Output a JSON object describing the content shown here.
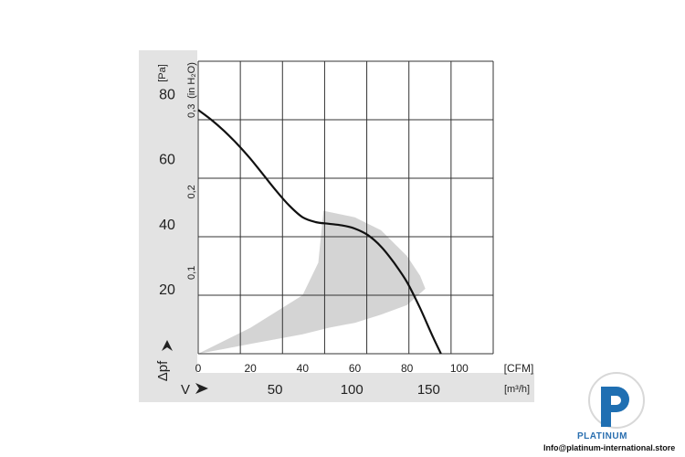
{
  "chart_data": {
    "type": "line",
    "title": "",
    "ylabel": "Δpf",
    "xlabel": "V",
    "y_unit_primary": "[Pa]",
    "y_unit_secondary": "(in H₂O)",
    "x_unit_primary": "[CFM]",
    "x_unit_secondary": "[m³/h]",
    "ylim": [
      0,
      90
    ],
    "xlim": [
      0,
      113
    ],
    "y_ticks": [
      "20",
      "40",
      "60",
      "80"
    ],
    "y_ticks_secondary": [
      "0,1",
      "0,2",
      "0,3"
    ],
    "x_ticks": [
      "0",
      "20",
      "40",
      "60",
      "80",
      "100"
    ],
    "x_ticks_secondary": [
      "50",
      "100",
      "150"
    ],
    "grid": true,
    "series": [
      {
        "x": [
          0,
          5,
          10,
          15,
          20,
          25,
          30,
          35,
          40,
          45,
          50,
          55,
          60,
          65,
          70,
          75,
          80,
          85,
          90,
          93
        ],
        "values": [
          75,
          72,
          68.5,
          64.5,
          60,
          55,
          50,
          45.5,
          42,
          40.5,
          40,
          39.5,
          38.5,
          36.5,
          33,
          28,
          22,
          14,
          5,
          0
        ]
      }
    ],
    "operating_region": {
      "upper": {
        "x": [
          0,
          20,
          40,
          46,
          48,
          60,
          70,
          80,
          85,
          87
        ],
        "y": [
          0,
          8,
          18,
          28,
          44,
          42,
          38,
          30,
          24,
          20
        ]
      },
      "lower": {
        "x": [
          87,
          80,
          70,
          60,
          50,
          40,
          30,
          20,
          10,
          0
        ],
        "y": [
          20,
          15,
          12,
          9.5,
          8,
          6,
          4.5,
          3,
          1.5,
          0
        ]
      },
      "color": "#d4d4d4"
    },
    "colors": {
      "curve": "#111111",
      "grid": "#333333",
      "band": "#e3e3e3",
      "region": "#d4d4d4"
    }
  },
  "watermark": {
    "brand": "PLATINUM",
    "contact": "Info@platinum-international.store",
    "logo_color": "#1f6fb2"
  }
}
